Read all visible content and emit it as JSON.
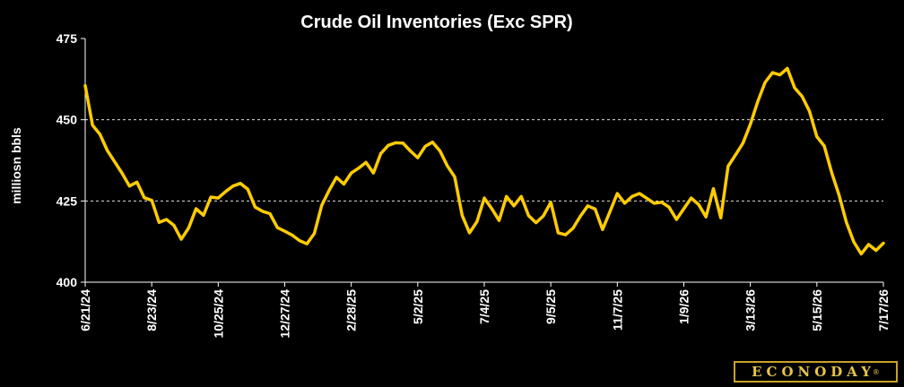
{
  "chart_data": {
    "type": "line",
    "title": "Crude Oil Inventories (Exc SPR)",
    "ylabel": "milliosn bbls",
    "xlabel": "",
    "ylim": [
      400,
      475
    ],
    "yticks": [
      "400",
      "425",
      "450",
      "475"
    ],
    "grid": "horizontal dashed at 425 and 450",
    "xticks": [
      "6/21/24",
      "8/23/24",
      "10/25/24",
      "12/27/24",
      "2/28/25",
      "5/2/25",
      "7/4/25",
      "9/5/25",
      "11/7/25",
      "1/9/26",
      "3/13/26",
      "5/15/26",
      "7/17/26"
    ],
    "series": [
      {
        "color": "#ffcc00",
        "values": [
          460.5,
          448.3,
          445.5,
          440.5,
          437.0,
          433.5,
          429.6,
          430.8,
          426.0,
          425.2,
          418.4,
          419.3,
          417.5,
          413.2,
          416.7,
          422.6,
          420.6,
          426.2,
          425.9,
          427.9,
          429.6,
          430.4,
          428.6,
          423.1,
          421.8,
          421.1,
          416.8,
          415.7,
          414.5,
          412.8,
          411.8,
          415.0,
          423.6,
          428.2,
          432.3,
          430.2,
          433.6,
          435.1,
          436.9,
          433.6,
          439.6,
          442.1,
          442.9,
          442.8,
          440.4,
          438.3,
          441.8,
          443.1,
          440.4,
          435.8,
          432.4,
          420.6,
          415.2,
          418.6,
          425.9,
          422.7,
          419.0,
          426.4,
          423.5,
          426.4,
          420.5,
          418.3,
          420.4,
          424.6,
          415.2,
          414.6,
          416.6,
          420.3,
          423.5,
          422.5,
          416.2,
          421.7,
          427.3,
          424.3,
          426.4,
          427.3,
          425.8,
          424.3,
          424.6,
          423.1,
          419.3,
          422.6,
          425.9,
          423.9,
          420.1,
          428.8,
          419.8,
          435.7,
          439.2,
          442.8,
          448.6,
          455.6,
          461.5,
          464.5,
          463.8,
          465.8,
          459.8,
          457.2,
          452.6,
          444.8,
          441.9,
          433.8,
          426.8,
          418.4,
          412.4,
          408.7,
          411.6,
          409.8,
          412.0
        ]
      }
    ]
  },
  "brand": {
    "name": "ECONODAY",
    "mark": "®"
  }
}
